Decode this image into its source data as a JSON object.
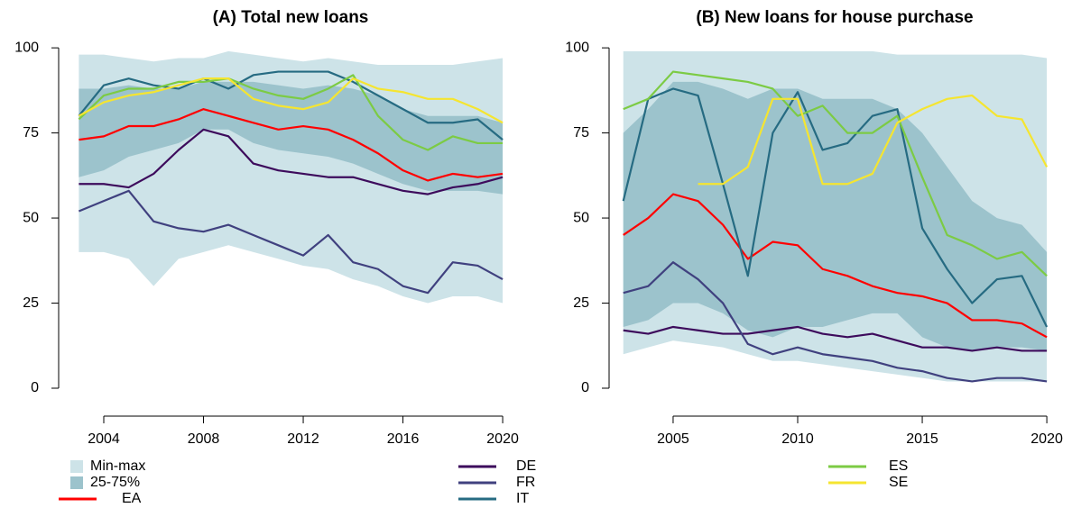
{
  "chart_data": [
    {
      "type": "line",
      "title": "(A) Total new loans",
      "x": [
        2003,
        2004,
        2005,
        2006,
        2007,
        2008,
        2009,
        2010,
        2011,
        2012,
        2013,
        2014,
        2015,
        2016,
        2017,
        2018,
        2019,
        2020
      ],
      "xlim": [
        2002.19,
        2020.83
      ],
      "ylim": [
        -8.2,
        104
      ],
      "xticks": [
        2004,
        2008,
        2012,
        2016,
        2020
      ],
      "yticks": [
        0,
        25,
        50,
        75,
        100
      ],
      "bands": [
        {
          "name": "Min-max",
          "color": "#cde3e8",
          "lower": [
            40,
            40,
            38,
            30,
            38,
            40,
            42,
            40,
            38,
            36,
            35,
            32,
            30,
            27,
            25,
            27,
            27,
            25
          ],
          "upper": [
            98,
            98,
            97,
            96,
            97,
            97,
            99,
            98,
            97,
            96,
            97,
            96,
            95,
            95,
            95,
            95,
            96,
            97
          ]
        },
        {
          "name": "25-75%",
          "color": "#9cc3cc",
          "lower": [
            62,
            64,
            68,
            70,
            72,
            76,
            76,
            72,
            70,
            69,
            68,
            66,
            63,
            60,
            58,
            58,
            58,
            57
          ],
          "upper": [
            88,
            88,
            89,
            88,
            88,
            90,
            90,
            90,
            89,
            88,
            89,
            88,
            86,
            82,
            80,
            80,
            80,
            78
          ]
        }
      ],
      "series": [
        {
          "name": "EA",
          "color": "#ff0000",
          "values": [
            73,
            74,
            77,
            77,
            79,
            82,
            80,
            78,
            76,
            77,
            76,
            73,
            69,
            64,
            61,
            63,
            62,
            63
          ]
        },
        {
          "name": "DE",
          "color": "#3d0b5c",
          "values": [
            60,
            60,
            59,
            63,
            70,
            76,
            74,
            66,
            64,
            63,
            62,
            62,
            60,
            58,
            57,
            59,
            60,
            62
          ]
        },
        {
          "name": "FR",
          "color": "#40417f",
          "values": [
            52,
            55,
            58,
            49,
            47,
            46,
            48,
            45,
            42,
            39,
            45,
            37,
            35,
            30,
            28,
            37,
            36,
            32
          ]
        },
        {
          "name": "IT",
          "color": "#266b82",
          "values": [
            80,
            89,
            91,
            89,
            88,
            91,
            88,
            92,
            93,
            93,
            93,
            90,
            86,
            82,
            78,
            78,
            79,
            73
          ]
        },
        {
          "name": "ES",
          "color": "#7ccb44",
          "values": [
            79,
            86,
            88,
            88,
            90,
            90,
            91,
            88,
            86,
            85,
            88,
            92,
            80,
            73,
            70,
            74,
            72,
            72
          ]
        },
        {
          "name": "SE",
          "color": "#f5e530",
          "values": [
            80,
            84,
            86,
            87,
            89,
            91,
            91,
            85,
            83,
            82,
            84,
            91,
            88,
            87,
            85,
            85,
            82,
            78
          ]
        }
      ]
    },
    {
      "type": "line",
      "title": "(B) New loans for house purchase",
      "x": [
        2003,
        2004,
        2005,
        2006,
        2007,
        2008,
        2009,
        2010,
        2011,
        2012,
        2013,
        2014,
        2015,
        2016,
        2017,
        2018,
        2019,
        2020
      ],
      "xlim": [
        2002.43,
        2020.54
      ],
      "ylim": [
        -8.2,
        104
      ],
      "xticks": [
        2005,
        2010,
        2015,
        2020
      ],
      "yticks": [
        0,
        25,
        50,
        75,
        100
      ],
      "bands": [
        {
          "name": "Min-max",
          "color": "#cde3e8",
          "lower": [
            10,
            12,
            14,
            13,
            12,
            10,
            8,
            8,
            7,
            6,
            5,
            4,
            3,
            2,
            2,
            2,
            2,
            2
          ],
          "upper": [
            99,
            99,
            99,
            99,
            99,
            99,
            99,
            99,
            99,
            99,
            99,
            98,
            98,
            98,
            98,
            98,
            98,
            97
          ]
        },
        {
          "name": "25-75%",
          "color": "#9cc3cc",
          "lower": [
            18,
            20,
            25,
            25,
            22,
            17,
            15,
            18,
            18,
            20,
            22,
            22,
            15,
            12,
            11,
            12,
            12,
            11
          ],
          "upper": [
            75,
            82,
            90,
            90,
            88,
            85,
            88,
            88,
            85,
            85,
            85,
            82,
            75,
            65,
            55,
            50,
            48,
            40
          ]
        }
      ],
      "series": [
        {
          "name": "EA",
          "color": "#ff0000",
          "values": [
            45,
            50,
            57,
            55,
            48,
            38,
            43,
            42,
            35,
            33,
            30,
            28,
            27,
            25,
            20,
            20,
            19,
            15
          ]
        },
        {
          "name": "DE",
          "color": "#3d0b5c",
          "values": [
            17,
            16,
            18,
            17,
            16,
            16,
            17,
            18,
            16,
            15,
            16,
            14,
            12,
            12,
            11,
            12,
            11,
            11
          ]
        },
        {
          "name": "FR",
          "color": "#40417f",
          "values": [
            28,
            30,
            37,
            32,
            25,
            13,
            10,
            12,
            10,
            9,
            8,
            6,
            5,
            3,
            2,
            3,
            3,
            2
          ]
        },
        {
          "name": "IT",
          "color": "#266b82",
          "values": [
            55,
            85,
            88,
            86,
            60,
            33,
            75,
            87,
            70,
            72,
            80,
            82,
            47,
            35,
            25,
            32,
            33,
            18
          ]
        },
        {
          "name": "ES",
          "color": "#7ccb44",
          "values": [
            82,
            85,
            93,
            92,
            91,
            90,
            88,
            80,
            83,
            75,
            75,
            80,
            62,
            45,
            42,
            38,
            40,
            33
          ]
        },
        {
          "name": "SE",
          "color": "#f5e530",
          "values": [
            null,
            null,
            null,
            60,
            60,
            65,
            85,
            85,
            60,
            60,
            63,
            78,
            82,
            85,
            86,
            80,
            79,
            65
          ]
        }
      ]
    }
  ]
}
